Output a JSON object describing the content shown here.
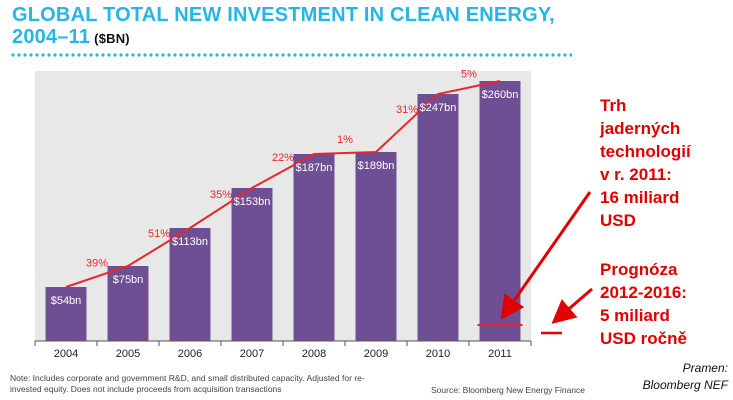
{
  "title": {
    "line1": "GLOBAL TOTAL NEW INVESTMENT IN CLEAN ENERGY,",
    "line2": "2004–11",
    "unit": "($BN)"
  },
  "chart_data": {
    "type": "bar",
    "categories": [
      "2004",
      "2005",
      "2006",
      "2007",
      "2008",
      "2009",
      "2010",
      "2011"
    ],
    "series": [
      {
        "values": [
          54,
          75,
          113,
          153,
          187,
          189,
          247,
          260
        ]
      }
    ],
    "value_labels": [
      "$54bn",
      "$75bn",
      "$113bn",
      "$153bn",
      "$187bn",
      "$189bn",
      "$247bn",
      "$260bn"
    ],
    "growth_labels": [
      "39%",
      "51%",
      "35%",
      "22%",
      "1%",
      "31%",
      "5%"
    ],
    "nuclear_2011_value": 16,
    "ylim": [
      0,
      270
    ],
    "bar_color": "#6f4f93",
    "line_color": "#e8262b",
    "grid": false
  },
  "annotations": {
    "nuclear": [
      "Trh",
      "jaderných",
      "technologií",
      "v r. 2011:",
      "16 miliard",
      "USD"
    ],
    "forecast": [
      "Prognóza",
      "2012-2016:",
      "5 miliard",
      "USD ročně"
    ],
    "color": "#e00000"
  },
  "footer": {
    "note": "Note: Includes corporate and government R&D, and small distributed capacity. Adjusted for re-invested equity. Does not include proceeds from acquisition transactions",
    "source": "Source: Bloomberg New Energy Finance",
    "pramen_line1": "Pramen:",
    "pramen_line2": "Bloomberg NEF"
  }
}
